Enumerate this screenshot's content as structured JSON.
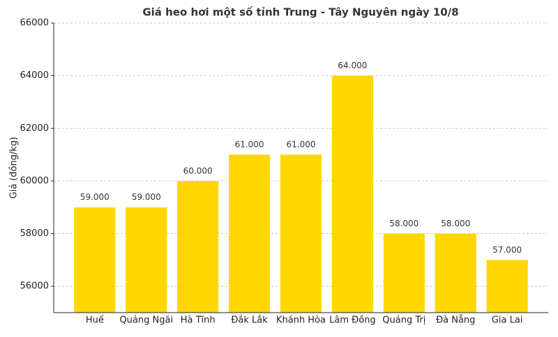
{
  "chart_data": {
    "type": "bar",
    "title": "Giá heo hơi một số tỉnh Trung - Tây Nguyên ngày 10/8",
    "y_label": "Giá (đồng/kg)",
    "categories": [
      "Huế",
      "Quảng Ngãi",
      "Hà Tĩnh",
      "Đắk Lắk",
      "Khánh Hòa",
      "Lâm Đồng",
      "Quảng Trị",
      "Đà Nẵng",
      "Gia Lai"
    ],
    "values": [
      59000,
      59000,
      60000,
      61000,
      61000,
      64000,
      58000,
      58000,
      57000
    ],
    "value_labels": [
      "59.000",
      "59.000",
      "60.000",
      "61.000",
      "61.000",
      "64.000",
      "58.000",
      "58.000",
      "57.000"
    ],
    "color": "#ffd700",
    "ylim": [
      55000,
      66000
    ],
    "yticks": [
      56000,
      58000,
      60000,
      62000,
      64000,
      66000
    ],
    "grid": true
  }
}
